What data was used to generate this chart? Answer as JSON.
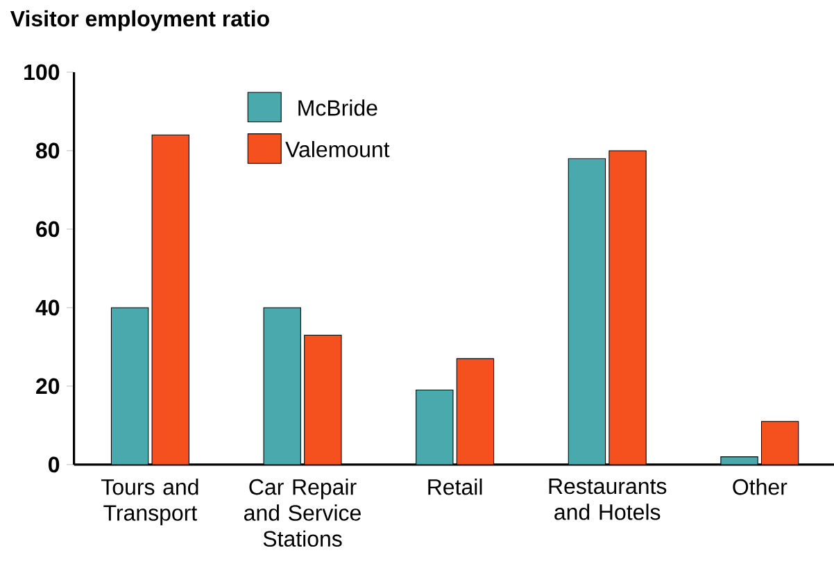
{
  "chart_data": {
    "type": "bar",
    "title": "Visitor employment ratio",
    "categories": [
      "Tours and Transport",
      "Car Repair and Service Stations",
      "Retail",
      "Restaurants and Hotels",
      "Other"
    ],
    "series": [
      {
        "name": "McBride",
        "color": "#4aa9ad",
        "values": [
          40,
          40,
          19,
          78,
          2
        ]
      },
      {
        "name": "Valemount",
        "color": "#f4511e",
        "values": [
          84,
          33,
          27,
          80,
          11
        ]
      }
    ],
    "ylim": [
      0,
      100
    ],
    "yticks": [
      0,
      20,
      40,
      60,
      80,
      100
    ],
    "legend": "top left",
    "grid": false
  }
}
